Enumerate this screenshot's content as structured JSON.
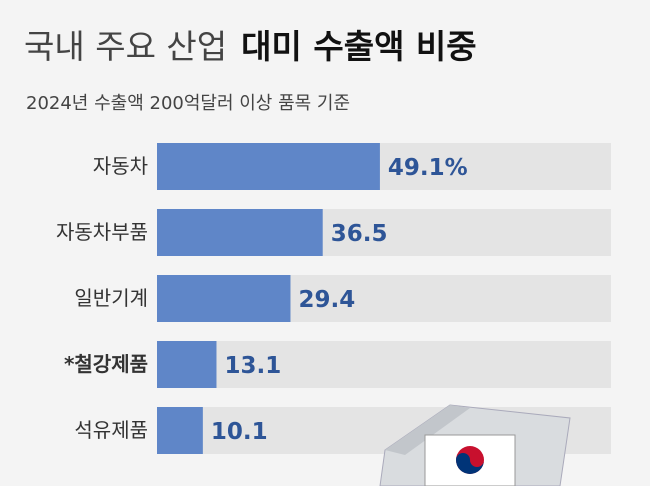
{
  "chart_data": {
    "type": "bar",
    "orientation": "horizontal",
    "title": [
      "국내 주요 산업",
      "대미 수출액 비중"
    ],
    "subtitle": "2024년 수출액 200억달러 이상 품목 기준",
    "categories": [
      "자동차",
      "자동차부품",
      "일반기계",
      "*철강제품",
      "석유제품"
    ],
    "values": [
      49.1,
      36.5,
      29.4,
      13.1,
      10.1
    ],
    "value_labels": [
      "49.1%",
      "36.5",
      "29.4",
      "13.1",
      "10.1"
    ],
    "color": "#5f86c8",
    "xlim": [
      0,
      100
    ]
  }
}
